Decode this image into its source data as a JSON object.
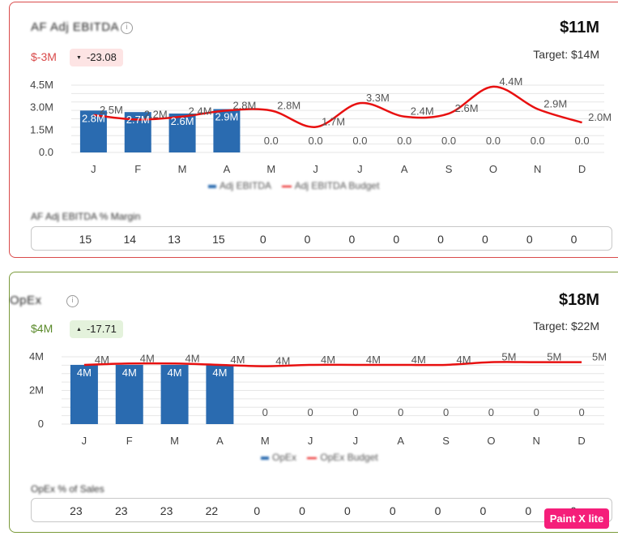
{
  "months": [
    "J",
    "F",
    "M",
    "A",
    "M",
    "J",
    "J",
    "A",
    "S",
    "O",
    "N",
    "D"
  ],
  "colors": {
    "bar": "#2a6bb0",
    "line": "#e81010",
    "negative": "#d94a4a",
    "positive": "#5a8a2a",
    "badge_negative_bg": "#fde4e4",
    "badge_positive_bg": "#e4f2dc"
  },
  "cards": [
    {
      "title": "AF Adj EBITDA",
      "info_icon": "info-icon",
      "total": "$11M",
      "variance": "$-3M",
      "badge_text": "-23.08",
      "badge_icon": "triangle-down-icon",
      "target": "Target: $14M",
      "legend_bar": "Adj EBITDA",
      "legend_line": "Adj EBITDA Budget",
      "sub_title": "AF Adj EBITDA % Margin",
      "row_values": [
        "15",
        "14",
        "13",
        "15",
        "0",
        "0",
        "0",
        "0",
        "0",
        "0",
        "0",
        "0"
      ],
      "chart_data": {
        "type": "bar",
        "categories": [
          "J",
          "F",
          "M",
          "A",
          "M",
          "J",
          "J",
          "A",
          "S",
          "O",
          "N",
          "D"
        ],
        "y_ticks": [
          "4.5M",
          "3.0M",
          "1.5M",
          "0.0"
        ],
        "ylim": [
          0,
          4.5
        ],
        "grid": true,
        "series": [
          {
            "kind": "bar",
            "values": [
              2.8,
              2.7,
              2.6,
              2.9,
              0,
              0,
              0,
              0,
              0,
              0,
              0,
              0
            ],
            "labels": [
              "2.8M",
              "2.7M",
              "2.6M",
              "2.9M",
              "0.0",
              "0.0",
              "0.0",
              "0.0",
              "0.0",
              "0.0",
              "0.0",
              "0.0"
            ]
          },
          {
            "kind": "line",
            "values": [
              2.5,
              2.2,
              2.4,
              2.8,
              2.8,
              1.7,
              3.3,
              2.4,
              2.6,
              4.4,
              2.9,
              2.0
            ],
            "labels": [
              "2.5M",
              "2.2M",
              "2.4M",
              "2.8M",
              "2.8M",
              "1.7M",
              "3.3M",
              "2.4M",
              "2.6M",
              "4.4M",
              "2.9M",
              "2.0M"
            ]
          }
        ]
      }
    },
    {
      "title": "OpEx",
      "info_icon": "info-icon",
      "total": "$18M",
      "variance": "$4M",
      "badge_text": "-17.71",
      "badge_icon": "triangle-up-icon",
      "target": "Target: $22M",
      "legend_bar": "OpEx",
      "legend_line": "OpEx Budget",
      "sub_title": "OpEx % of Sales",
      "row_values": [
        "23",
        "23",
        "23",
        "22",
        "0",
        "0",
        "0",
        "0",
        "0",
        "0",
        "0",
        "0"
      ],
      "chart_data": {
        "type": "bar",
        "categories": [
          "J",
          "F",
          "M",
          "A",
          "M",
          "J",
          "J",
          "A",
          "S",
          "O",
          "N",
          "D"
        ],
        "y_ticks": [
          "4M",
          "2M",
          "0"
        ],
        "ylim": [
          0,
          5
        ],
        "grid": true,
        "series": [
          {
            "kind": "bar",
            "values": [
              4.4,
              4.4,
              4.4,
              4.4,
              0,
              0,
              0,
              0,
              0,
              0,
              0,
              0
            ],
            "labels": [
              "4M",
              "4M",
              "4M",
              "4M",
              "0",
              "0",
              "0",
              "0",
              "0",
              "0",
              "0",
              "0"
            ]
          },
          {
            "kind": "line",
            "values": [
              4.4,
              4.5,
              4.5,
              4.4,
              4.3,
              4.4,
              4.4,
              4.4,
              4.4,
              4.6,
              4.6,
              4.6
            ],
            "labels": [
              "4M",
              "4M",
              "4M",
              "4M",
              "4M",
              "4M",
              "4M",
              "4M",
              "4M",
              "5M",
              "5M",
              "5M"
            ]
          }
        ]
      }
    }
  ],
  "watermark": "Paint X lite"
}
